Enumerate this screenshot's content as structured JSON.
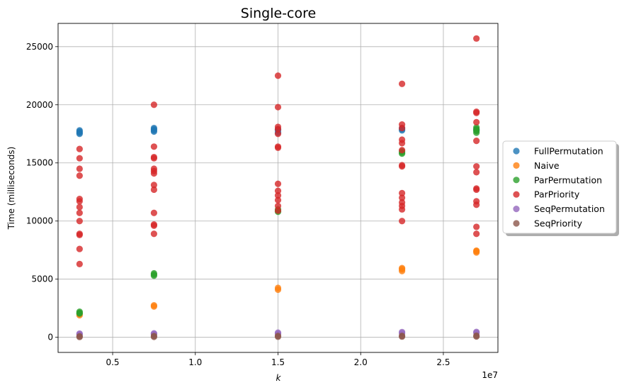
{
  "chart_data": {
    "type": "scatter",
    "title": "Single-core",
    "xlabel": "k",
    "ylabel": "Time (milliseconds)",
    "x_offset_label": "1e7",
    "xlim": [
      1700000,
      28300000
    ],
    "ylim": [
      -1300,
      27000
    ],
    "xticks": [
      5000000,
      10000000,
      15000000,
      20000000,
      25000000
    ],
    "xtick_labels": [
      "0.5",
      "1.0",
      "1.5",
      "2.0",
      "2.5"
    ],
    "yticks": [
      0,
      5000,
      10000,
      15000,
      20000,
      25000
    ],
    "ytick_labels": [
      "0",
      "5000",
      "10000",
      "15000",
      "20000",
      "25000"
    ],
    "grid": true,
    "legend_position": "right",
    "series": [
      {
        "name": "FullPermutation",
        "color": "#1f77b4",
        "points": [
          [
            3000000,
            17500
          ],
          [
            3000000,
            17600
          ],
          [
            3000000,
            17700
          ],
          [
            3000000,
            17800
          ],
          [
            7500000,
            17700
          ],
          [
            7500000,
            17800
          ],
          [
            7500000,
            17900
          ],
          [
            7500000,
            18000
          ],
          [
            15000000,
            17600
          ],
          [
            15000000,
            17800
          ],
          [
            15000000,
            17900
          ],
          [
            22500000,
            17800
          ],
          [
            22500000,
            17900
          ],
          [
            22500000,
            18000
          ],
          [
            27000000,
            17800
          ],
          [
            27000000,
            17900
          ]
        ]
      },
      {
        "name": "Naive",
        "color": "#ff7f0e",
        "points": [
          [
            3000000,
            1900
          ],
          [
            3000000,
            2000
          ],
          [
            7500000,
            2650
          ],
          [
            7500000,
            2750
          ],
          [
            15000000,
            4100
          ],
          [
            15000000,
            4250
          ],
          [
            22500000,
            5700
          ],
          [
            22500000,
            5850
          ],
          [
            22500000,
            5950
          ],
          [
            27000000,
            7300
          ],
          [
            27000000,
            7400
          ],
          [
            27000000,
            7450
          ]
        ]
      },
      {
        "name": "ParPermutation",
        "color": "#2ca02c",
        "points": [
          [
            3000000,
            2050
          ],
          [
            3000000,
            2100
          ],
          [
            3000000,
            2200
          ],
          [
            7500000,
            5300
          ],
          [
            7500000,
            5400
          ],
          [
            7500000,
            5500
          ],
          [
            15000000,
            10800
          ],
          [
            15000000,
            10900
          ],
          [
            15000000,
            11000
          ],
          [
            22500000,
            15800
          ],
          [
            22500000,
            15900
          ],
          [
            22500000,
            16000
          ],
          [
            27000000,
            17600
          ],
          [
            27000000,
            17750
          ],
          [
            27000000,
            17900
          ],
          [
            27000000,
            18050
          ]
        ]
      },
      {
        "name": "ParPriority",
        "color": "#d62728",
        "points": [
          [
            3000000,
            6300
          ],
          [
            3000000,
            7600
          ],
          [
            3000000,
            8800
          ],
          [
            3000000,
            8900
          ],
          [
            3000000,
            10000
          ],
          [
            3000000,
            10700
          ],
          [
            3000000,
            11200
          ],
          [
            3000000,
            11700
          ],
          [
            3000000,
            11900
          ],
          [
            3000000,
            13900
          ],
          [
            3000000,
            14500
          ],
          [
            3000000,
            15400
          ],
          [
            3000000,
            16200
          ],
          [
            7500000,
            8900
          ],
          [
            7500000,
            9600
          ],
          [
            7500000,
            9700
          ],
          [
            7500000,
            10700
          ],
          [
            7500000,
            12700
          ],
          [
            7500000,
            13100
          ],
          [
            7500000,
            14100
          ],
          [
            7500000,
            14300
          ],
          [
            7500000,
            14500
          ],
          [
            7500000,
            15400
          ],
          [
            7500000,
            15500
          ],
          [
            7500000,
            16400
          ],
          [
            7500000,
            20000
          ],
          [
            15000000,
            10900
          ],
          [
            15000000,
            11300
          ],
          [
            15000000,
            11800
          ],
          [
            15000000,
            12200
          ],
          [
            15000000,
            12600
          ],
          [
            15000000,
            13200
          ],
          [
            15000000,
            16300
          ],
          [
            15000000,
            16400
          ],
          [
            15000000,
            17500
          ],
          [
            15000000,
            17900
          ],
          [
            15000000,
            18100
          ],
          [
            15000000,
            19800
          ],
          [
            15000000,
            22500
          ],
          [
            22500000,
            10000
          ],
          [
            22500000,
            11000
          ],
          [
            22500000,
            11300
          ],
          [
            22500000,
            11600
          ],
          [
            22500000,
            12000
          ],
          [
            22500000,
            12400
          ],
          [
            22500000,
            14700
          ],
          [
            22500000,
            14800
          ],
          [
            22500000,
            16100
          ],
          [
            22500000,
            16700
          ],
          [
            22500000,
            17000
          ],
          [
            22500000,
            18000
          ],
          [
            22500000,
            18300
          ],
          [
            22500000,
            21800
          ],
          [
            27000000,
            8900
          ],
          [
            27000000,
            9500
          ],
          [
            27000000,
            11400
          ],
          [
            27000000,
            11700
          ],
          [
            27000000,
            12700
          ],
          [
            27000000,
            12800
          ],
          [
            27000000,
            14200
          ],
          [
            27000000,
            14700
          ],
          [
            27000000,
            16900
          ],
          [
            27000000,
            18500
          ],
          [
            27000000,
            19300
          ],
          [
            27000000,
            19400
          ],
          [
            27000000,
            25700
          ]
        ]
      },
      {
        "name": "SeqPermutation",
        "color": "#9467bd",
        "points": [
          [
            3000000,
            250
          ],
          [
            3000000,
            320
          ],
          [
            7500000,
            280
          ],
          [
            7500000,
            340
          ],
          [
            15000000,
            300
          ],
          [
            15000000,
            400
          ],
          [
            22500000,
            350
          ],
          [
            22500000,
            450
          ],
          [
            27000000,
            380
          ],
          [
            27000000,
            460
          ]
        ]
      },
      {
        "name": "SeqPriority",
        "color": "#8c564b",
        "points": [
          [
            3000000,
            30
          ],
          [
            3000000,
            90
          ],
          [
            7500000,
            40
          ],
          [
            7500000,
            110
          ],
          [
            15000000,
            50
          ],
          [
            15000000,
            120
          ],
          [
            22500000,
            60
          ],
          [
            22500000,
            130
          ],
          [
            27000000,
            70
          ],
          [
            27000000,
            140
          ]
        ]
      }
    ]
  }
}
